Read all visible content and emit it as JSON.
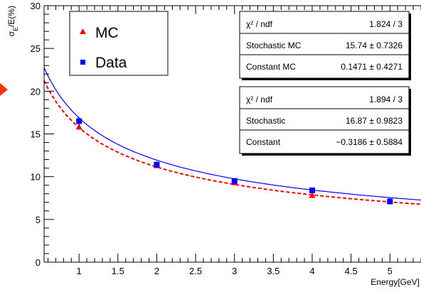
{
  "chart_data": {
    "type": "scatter",
    "xlabel": "Energy[GeV]",
    "ylabel": "σE/E(%)",
    "ylabel_main": "σ",
    "ylabel_sub": "E",
    "ylabel_rest": "/E(%)",
    "xlim": [
      0.55,
      5.4
    ],
    "ylim": [
      0,
      30
    ],
    "x_ticks": [
      1,
      1.5,
      2,
      2.5,
      3,
      3.5,
      4,
      4.5,
      5
    ],
    "x_tick_labels": [
      "1",
      "1.5",
      "2",
      "2.5",
      "3",
      "3.5",
      "4",
      "4.5",
      "5"
    ],
    "y_ticks": [
      0,
      5,
      10,
      15,
      20,
      25,
      30
    ],
    "y_tick_labels": [
      "0",
      "5",
      "10",
      "15",
      "20",
      "25",
      "30"
    ],
    "grid": false,
    "legend_position": "top-left",
    "series": [
      {
        "name": "MC",
        "marker": "triangle",
        "color": "#ff0000",
        "x": [
          1,
          2,
          3,
          4,
          5
        ],
        "y": [
          15.8,
          11.3,
          9.3,
          7.8,
          7.2
        ],
        "yerr": [
          0.3,
          0.3,
          0.2,
          0.2,
          0.2
        ],
        "fit": {
          "stochastic": 15.74,
          "constant": 0.1471,
          "style": "dashed"
        }
      },
      {
        "name": "Data",
        "marker": "square",
        "color": "#0000ff",
        "x": [
          1,
          2,
          3,
          4,
          5
        ],
        "y": [
          16.5,
          11.4,
          9.5,
          8.4,
          7.1
        ],
        "yerr": [
          0.5,
          0.4,
          0.3,
          0.3,
          0.3
        ],
        "fit": {
          "stochastic": 16.87,
          "constant": -0.3186,
          "style": "solid"
        }
      }
    ],
    "stat_boxes": [
      {
        "rows": [
          {
            "label": "χ² / ndf",
            "value": "1.824 / 3"
          },
          {
            "label": "Stochastic MC",
            "value": "15.74 ± 0.7326"
          },
          {
            "label": "Constant MC",
            "value": "0.1471 ± 0.4271"
          }
        ]
      },
      {
        "rows": [
          {
            "label": "χ² / ndf",
            "value": "1.894 / 3"
          },
          {
            "label": "Stochastic",
            "value": "16.87 ± 0.9823"
          },
          {
            "label": "Constant",
            "value": "−0.3186 ± 0.5884"
          }
        ]
      }
    ]
  },
  "colors": {
    "mc": "#ff0000",
    "data": "#0000ff",
    "arrow": "#ff3300"
  }
}
